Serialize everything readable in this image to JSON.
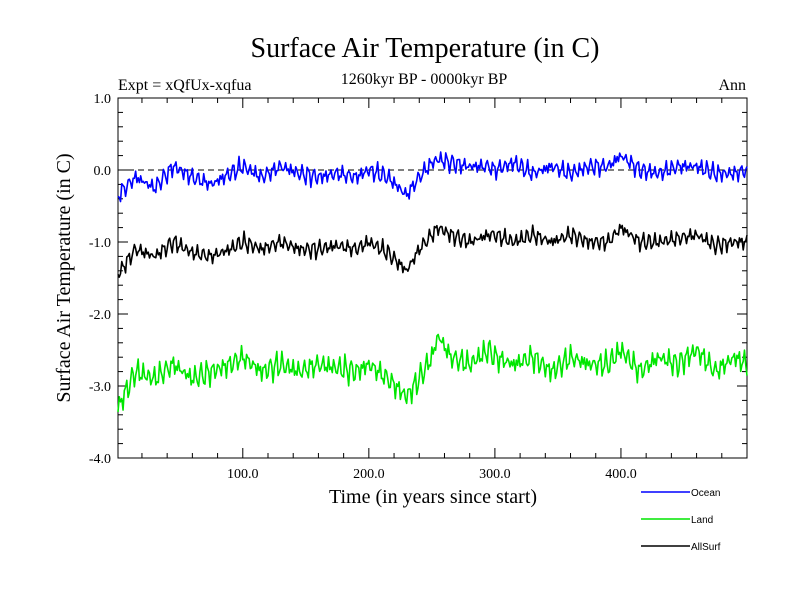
{
  "chart_data": {
    "type": "line",
    "title": "Surface Air Temperature (in C)",
    "subtitle": "1260kyr BP - 0000kyr BP",
    "experiment": "Expt = xQfUx-xqfua",
    "season": "Ann",
    "xlabel": "Time (in years since start)",
    "ylabel": "Surface Air Temperature (in C)",
    "xlim": [
      1,
      500
    ],
    "ylim": [
      -4.0,
      1.0
    ],
    "x_ticks": [
      100,
      200,
      300,
      400
    ],
    "x_tick_labels": [
      "100.0",
      "200.0",
      "300.0",
      "400.0"
    ],
    "y_ticks": [
      1,
      0,
      -1,
      -2,
      -3,
      -4
    ],
    "y_tick_labels": [
      "1.0",
      "0.0",
      "-1.0",
      "-2.0",
      "-3.0",
      "-4.0"
    ],
    "reference_line": 0.0,
    "series": [
      {
        "name": "Ocean",
        "color": "#0000ff",
        "x": [
          1,
          15,
          30,
          45,
          60,
          75,
          90,
          100,
          115,
          130,
          145,
          160,
          175,
          190,
          200,
          215,
          230,
          240,
          250,
          255,
          265,
          280,
          295,
          300,
          315,
          330,
          345,
          360,
          375,
          390,
          400,
          415,
          430,
          445,
          460,
          475,
          490,
          500
        ],
        "values": [
          -0.35,
          -0.1,
          -0.25,
          0.05,
          -0.1,
          -0.2,
          -0.05,
          0.05,
          -0.1,
          0.05,
          -0.05,
          -0.1,
          -0.05,
          -0.1,
          0.0,
          -0.1,
          -0.35,
          -0.1,
          0.1,
          0.15,
          0.1,
          0.05,
          0.05,
          0.0,
          0.1,
          -0.05,
          0.05,
          -0.05,
          0.05,
          0.05,
          0.2,
          0.0,
          -0.05,
          0.05,
          0.05,
          -0.05,
          -0.05,
          0.0
        ]
      },
      {
        "name": "Land",
        "color": "#00e600",
        "x": [
          1,
          15,
          30,
          45,
          60,
          75,
          90,
          100,
          115,
          130,
          145,
          160,
          175,
          190,
          200,
          215,
          230,
          240,
          250,
          255,
          265,
          280,
          295,
          300,
          315,
          330,
          345,
          360,
          375,
          390,
          400,
          415,
          430,
          445,
          460,
          475,
          490,
          500
        ],
        "values": [
          -3.3,
          -2.8,
          -2.9,
          -2.7,
          -2.9,
          -2.8,
          -2.7,
          -2.6,
          -2.8,
          -2.7,
          -2.8,
          -2.7,
          -2.75,
          -2.8,
          -2.7,
          -2.9,
          -3.15,
          -2.9,
          -2.6,
          -2.3,
          -2.6,
          -2.7,
          -2.5,
          -2.6,
          -2.7,
          -2.6,
          -2.8,
          -2.6,
          -2.7,
          -2.7,
          -2.5,
          -2.8,
          -2.6,
          -2.7,
          -2.5,
          -2.8,
          -2.6,
          -2.7
        ]
      },
      {
        "name": "AllSurf",
        "color": "#000000",
        "x": [
          1,
          15,
          30,
          45,
          60,
          75,
          90,
          100,
          115,
          130,
          145,
          160,
          175,
          190,
          200,
          215,
          230,
          240,
          250,
          255,
          265,
          280,
          295,
          300,
          315,
          330,
          345,
          360,
          375,
          390,
          400,
          415,
          430,
          445,
          460,
          475,
          490,
          500
        ],
        "values": [
          -1.45,
          -1.1,
          -1.2,
          -1.0,
          -1.15,
          -1.2,
          -1.1,
          -1.0,
          -1.1,
          -1.0,
          -1.1,
          -1.1,
          -1.05,
          -1.1,
          -1.0,
          -1.15,
          -1.4,
          -1.1,
          -0.9,
          -0.8,
          -0.9,
          -1.0,
          -0.9,
          -0.9,
          -1.0,
          -0.9,
          -1.0,
          -0.9,
          -1.0,
          -1.0,
          -0.8,
          -1.0,
          -1.0,
          -0.95,
          -0.9,
          -1.05,
          -1.0,
          -1.0
        ]
      }
    ],
    "legend": [
      "Ocean",
      "Land",
      "AllSurf"
    ],
    "legend_position": "bottom-right"
  }
}
